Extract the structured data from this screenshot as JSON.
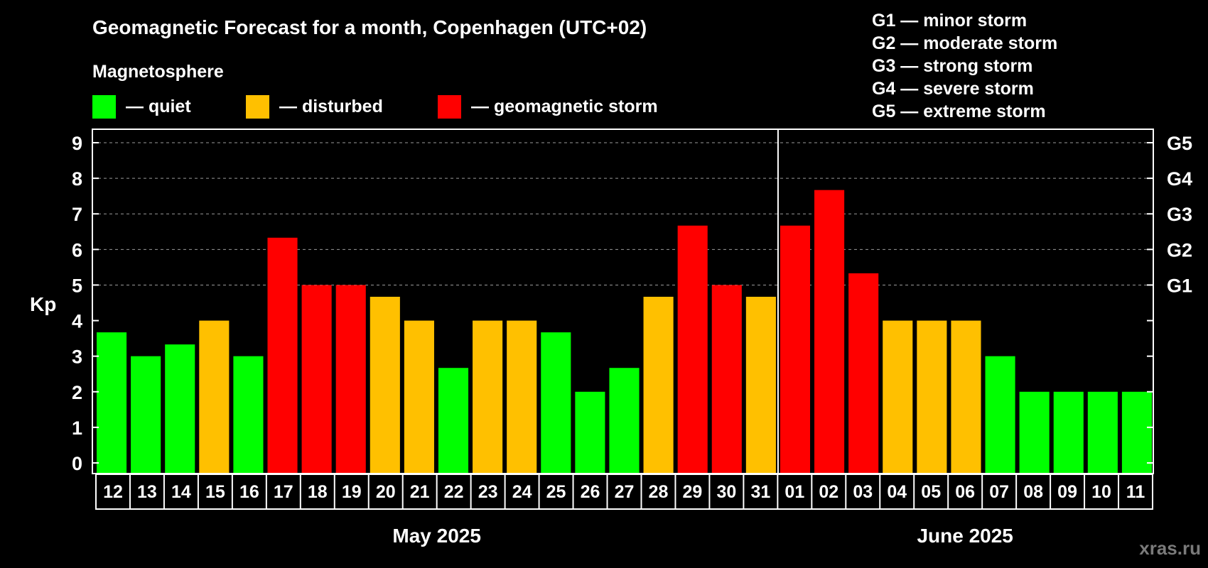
{
  "chart_data": {
    "type": "bar",
    "title": "Geomagnetic Forecast for a month, Copenhagen (UTC+02)",
    "legend_heading": "Magnetosphere",
    "legend": [
      {
        "label": "— quiet",
        "color": "#00ff00"
      },
      {
        "label": "— disturbed",
        "color": "#ffc000"
      },
      {
        "label": "— geomagnetic storm",
        "color": "#ff0000"
      }
    ],
    "storm_scale": [
      "G1 — minor storm",
      "G2 — moderate storm",
      "G3 — strong storm",
      "G4 — severe storm",
      "G5 — extreme storm"
    ],
    "ylabel": "Kp",
    "ylim": [
      0,
      9
    ],
    "yticks": [
      "0",
      "1",
      "2",
      "3",
      "4",
      "5",
      "6",
      "7",
      "8",
      "9"
    ],
    "right_ticks": [
      {
        "value": 5,
        "label": "G1"
      },
      {
        "value": 6,
        "label": "G2"
      },
      {
        "value": 7,
        "label": "G3"
      },
      {
        "value": 8,
        "label": "G4"
      },
      {
        "value": 9,
        "label": "G5"
      }
    ],
    "grid": "dashed, Kp 5 to 9",
    "categories": [
      "12",
      "13",
      "14",
      "15",
      "16",
      "17",
      "18",
      "19",
      "20",
      "21",
      "22",
      "23",
      "24",
      "25",
      "26",
      "27",
      "28",
      "29",
      "30",
      "31",
      "01",
      "02",
      "03",
      "04",
      "05",
      "06",
      "07",
      "08",
      "09",
      "10",
      "11"
    ],
    "values": [
      3.67,
      3,
      3.33,
      4,
      3,
      6.33,
      5,
      5,
      4.67,
      4,
      2.67,
      4,
      4,
      3.67,
      2,
      2.67,
      4.67,
      6.67,
      5,
      4.67,
      6.67,
      7.67,
      5.33,
      4,
      4,
      4,
      3,
      2,
      2,
      2,
      2
    ],
    "levels": [
      "quiet",
      "quiet",
      "quiet",
      "disturbed",
      "quiet",
      "storm",
      "storm",
      "storm",
      "disturbed",
      "disturbed",
      "quiet",
      "disturbed",
      "disturbed",
      "quiet",
      "quiet",
      "quiet",
      "disturbed",
      "storm",
      "storm",
      "disturbed",
      "storm",
      "storm",
      "storm",
      "disturbed",
      "disturbed",
      "disturbed",
      "quiet",
      "quiet",
      "quiet",
      "quiet",
      "quiet"
    ],
    "level_colors": {
      "quiet": "#00ff00",
      "disturbed": "#ffc000",
      "storm": "#ff0000"
    },
    "months": [
      {
        "label": "May 2025",
        "first": 0,
        "last": 19
      },
      {
        "label": "June 2025",
        "first": 20,
        "last": 30
      }
    ]
  },
  "watermark": "xras.ru"
}
